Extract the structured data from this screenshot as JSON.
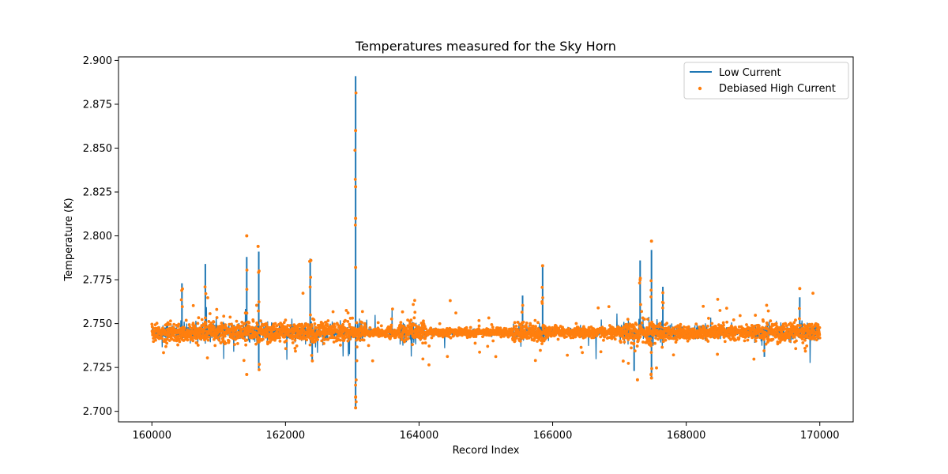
{
  "chart_data": {
    "type": "line",
    "title": "Temperatures measured for the Sky Horn",
    "xlabel": "Record Index",
    "ylabel": "Temperature (K)",
    "xlim": [
      159500,
      170500
    ],
    "ylim": [
      2.694,
      2.902
    ],
    "xticks": [
      160000,
      162000,
      164000,
      166000,
      168000,
      170000
    ],
    "yticks": [
      2.7,
      2.725,
      2.75,
      2.775,
      2.8,
      2.825,
      2.85,
      2.875,
      2.9
    ],
    "ytick_labels": [
      "2.700",
      "2.725",
      "2.750",
      "2.775",
      "2.800",
      "2.825",
      "2.850",
      "2.875",
      "2.900"
    ],
    "grid": false,
    "legend_position": "upper-right",
    "baseline": 2.745,
    "x_range": [
      160000,
      170000
    ],
    "series": [
      {
        "name": "Low Current",
        "style": "line",
        "color": "#1f77b4",
        "spikes": [
          {
            "x": 160450,
            "y": 2.773
          },
          {
            "x": 160800,
            "y": 2.784
          },
          {
            "x": 161420,
            "y": 2.788
          },
          {
            "x": 161600,
            "y": 2.791
          },
          {
            "x": 161600,
            "y": 2.723
          },
          {
            "x": 162370,
            "y": 2.787
          },
          {
            "x": 162400,
            "y": 2.728
          },
          {
            "x": 163050,
            "y": 2.891
          },
          {
            "x": 163050,
            "y": 2.702
          },
          {
            "x": 165850,
            "y": 2.783
          },
          {
            "x": 165550,
            "y": 2.766
          },
          {
            "x": 167310,
            "y": 2.786
          },
          {
            "x": 167480,
            "y": 2.792
          },
          {
            "x": 167480,
            "y": 2.719
          },
          {
            "x": 167220,
            "y": 2.723
          },
          {
            "x": 167650,
            "y": 2.771
          },
          {
            "x": 169700,
            "y": 2.765
          },
          {
            "x": 169170,
            "y": 2.731
          }
        ]
      },
      {
        "name": "Debiased High Current",
        "style": "scatter",
        "color": "#ff7f0e",
        "outliers": [
          {
            "x": 161420,
            "y": 2.8
          },
          {
            "x": 161590,
            "y": 2.794
          },
          {
            "x": 161420,
            "y": 2.721
          },
          {
            "x": 163050,
            "y": 2.86
          },
          {
            "x": 163050,
            "y": 2.828
          },
          {
            "x": 163050,
            "y": 2.81
          },
          {
            "x": 163050,
            "y": 2.782
          },
          {
            "x": 163050,
            "y": 2.702
          },
          {
            "x": 163050,
            "y": 2.708
          },
          {
            "x": 167480,
            "y": 2.797
          },
          {
            "x": 167480,
            "y": 2.719
          },
          {
            "x": 167270,
            "y": 2.718
          },
          {
            "x": 165850,
            "y": 2.783
          },
          {
            "x": 169700,
            "y": 2.77
          },
          {
            "x": 162380,
            "y": 2.786
          }
        ]
      }
    ]
  }
}
